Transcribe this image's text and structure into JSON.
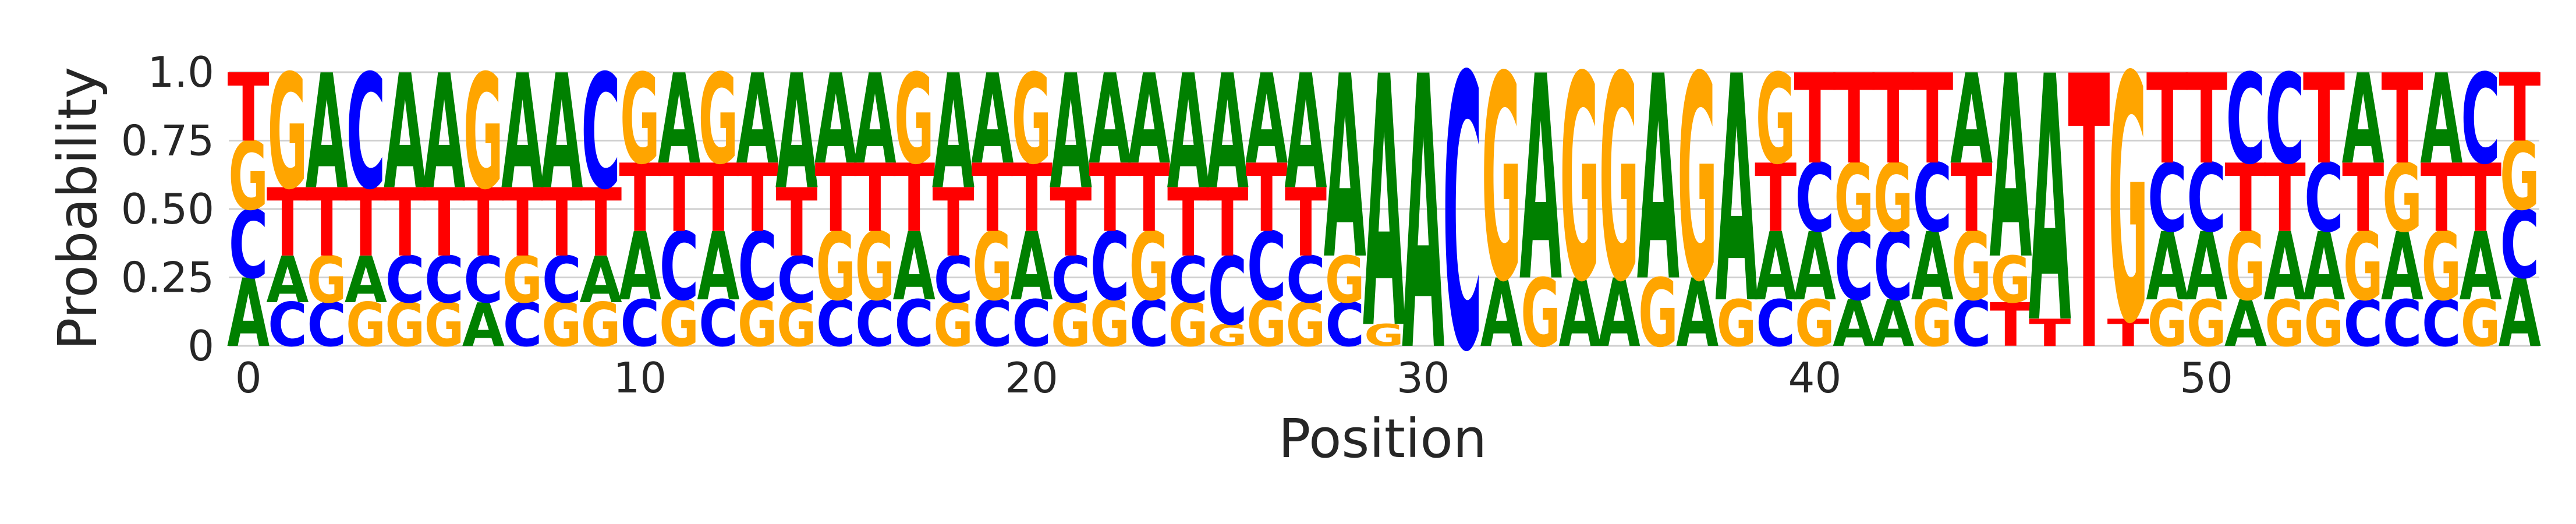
{
  "chart_data": {
    "type": "sequence-logo",
    "xlabel": "Position",
    "ylabel": "Probability",
    "ylim": [
      0,
      1
    ],
    "yticks": [
      0,
      0.25,
      0.5,
      0.75,
      1.0
    ],
    "ytick_labels": [
      "0",
      "0.25",
      "0.50",
      "0.75",
      "1.0"
    ],
    "xticks": [
      0,
      10,
      20,
      30,
      40,
      50
    ],
    "xtick_labels": [
      "0",
      "10",
      "20",
      "30",
      "40",
      "50"
    ],
    "grid": true,
    "colors": {
      "A": "#008000",
      "C": "#0000ff",
      "G": "#ffa500",
      "T": "#ff0000"
    },
    "positions": [
      {
        "A": 0.25,
        "C": 0.25,
        "G": 0.25,
        "T": 0.25
      },
      {
        "A": 0.17,
        "C": 0.16,
        "G": 0.42,
        "T": 0.25
      },
      {
        "A": 0.42,
        "C": 0.16,
        "G": 0.17,
        "T": 0.25
      },
      {
        "A": 0.17,
        "C": 0.42,
        "G": 0.16,
        "T": 0.25
      },
      {
        "A": 0.42,
        "C": 0.17,
        "G": 0.16,
        "T": 0.25
      },
      {
        "A": 0.42,
        "C": 0.17,
        "G": 0.16,
        "T": 0.25
      },
      {
        "A": 0.16,
        "C": 0.17,
        "G": 0.42,
        "T": 0.25
      },
      {
        "A": 0.42,
        "C": 0.16,
        "G": 0.17,
        "T": 0.25
      },
      {
        "A": 0.42,
        "C": 0.17,
        "G": 0.16,
        "T": 0.25
      },
      {
        "A": 0.17,
        "C": 0.42,
        "G": 0.16,
        "T": 0.25
      },
      {
        "A": 0.25,
        "C": 0.17,
        "G": 0.33,
        "T": 0.25
      },
      {
        "A": 0.33,
        "C": 0.25,
        "G": 0.17,
        "T": 0.25
      },
      {
        "A": 0.25,
        "C": 0.17,
        "G": 0.33,
        "T": 0.25
      },
      {
        "A": 0.33,
        "C": 0.25,
        "G": 0.17,
        "T": 0.25
      },
      {
        "A": 0.42,
        "C": 0.17,
        "G": 0.16,
        "T": 0.25
      },
      {
        "A": 0.33,
        "C": 0.17,
        "G": 0.25,
        "T": 0.25
      },
      {
        "A": 0.33,
        "C": 0.17,
        "G": 0.25,
        "T": 0.25
      },
      {
        "A": 0.25,
        "C": 0.17,
        "G": 0.33,
        "T": 0.25
      },
      {
        "A": 0.42,
        "C": 0.17,
        "G": 0.16,
        "T": 0.25
      },
      {
        "A": 0.33,
        "C": 0.17,
        "G": 0.25,
        "T": 0.25
      },
      {
        "A": 0.25,
        "C": 0.17,
        "G": 0.33,
        "T": 0.25
      },
      {
        "A": 0.42,
        "C": 0.17,
        "G": 0.16,
        "T": 0.25
      },
      {
        "A": 0.33,
        "C": 0.25,
        "G": 0.17,
        "T": 0.25
      },
      {
        "A": 0.33,
        "C": 0.17,
        "G": 0.25,
        "T": 0.25
      },
      {
        "A": 0.42,
        "C": 0.17,
        "G": 0.16,
        "T": 0.25
      },
      {
        "A": 0.42,
        "C": 0.25,
        "G": 0.08,
        "T": 0.25
      },
      {
        "A": 0.33,
        "C": 0.25,
        "G": 0.17,
        "T": 0.25
      },
      {
        "A": 0.42,
        "C": 0.17,
        "G": 0.16,
        "T": 0.25
      },
      {
        "A": 0.67,
        "C": 0.16,
        "G": 0.17,
        "T": 0.0
      },
      {
        "A": 0.92,
        "C": 0.0,
        "G": 0.08,
        "T": 0.0
      },
      {
        "A": 1.0,
        "C": 0.0,
        "G": 0.0,
        "T": 0.0
      },
      {
        "A": 0.0,
        "C": 1.0,
        "G": 0.0,
        "T": 0.0
      },
      {
        "A": 0.25,
        "C": 0.0,
        "G": 0.75,
        "T": 0.0
      },
      {
        "A": 0.75,
        "C": 0.0,
        "G": 0.25,
        "T": 0.0
      },
      {
        "A": 0.25,
        "C": 0.0,
        "G": 0.75,
        "T": 0.0
      },
      {
        "A": 0.25,
        "C": 0.0,
        "G": 0.75,
        "T": 0.0
      },
      {
        "A": 0.75,
        "C": 0.0,
        "G": 0.25,
        "T": 0.0
      },
      {
        "A": 0.25,
        "C": 0.0,
        "G": 0.75,
        "T": 0.0
      },
      {
        "A": 0.83,
        "C": 0.0,
        "G": 0.17,
        "T": 0.0
      },
      {
        "A": 0.25,
        "C": 0.17,
        "G": 0.33,
        "T": 0.25
      },
      {
        "A": 0.25,
        "C": 0.25,
        "G": 0.17,
        "T": 0.33
      },
      {
        "A": 0.17,
        "C": 0.25,
        "G": 0.25,
        "T": 0.33
      },
      {
        "A": 0.17,
        "C": 0.25,
        "G": 0.25,
        "T": 0.33
      },
      {
        "A": 0.25,
        "C": 0.25,
        "G": 0.17,
        "T": 0.33
      },
      {
        "A": 0.33,
        "C": 0.17,
        "G": 0.25,
        "T": 0.25
      },
      {
        "A": 0.67,
        "C": 0.0,
        "G": 0.17,
        "T": 0.16
      },
      {
        "A": 0.9,
        "C": 0.0,
        "G": 0.0,
        "T": 0.1
      },
      {
        "A": 0.0,
        "C": 0.0,
        "G": 0.0,
        "T": 1.0
      },
      {
        "A": 0.0,
        "C": 0.0,
        "G": 0.9,
        "T": 0.1
      },
      {
        "A": 0.25,
        "C": 0.25,
        "G": 0.17,
        "T": 0.33
      },
      {
        "A": 0.25,
        "C": 0.25,
        "G": 0.17,
        "T": 0.33
      },
      {
        "A": 0.17,
        "C": 0.33,
        "G": 0.25,
        "T": 0.25
      },
      {
        "A": 0.25,
        "C": 0.33,
        "G": 0.17,
        "T": 0.25
      },
      {
        "A": 0.25,
        "C": 0.25,
        "G": 0.17,
        "T": 0.33
      },
      {
        "A": 0.33,
        "C": 0.17,
        "G": 0.25,
        "T": 0.25
      },
      {
        "A": 0.25,
        "C": 0.17,
        "G": 0.25,
        "T": 0.33
      },
      {
        "A": 0.33,
        "C": 0.17,
        "G": 0.25,
        "T": 0.25
      },
      {
        "A": 0.25,
        "C": 0.33,
        "G": 0.17,
        "T": 0.25
      },
      {
        "A": 0.25,
        "C": 0.25,
        "G": 0.25,
        "T": 0.25
      }
    ]
  }
}
